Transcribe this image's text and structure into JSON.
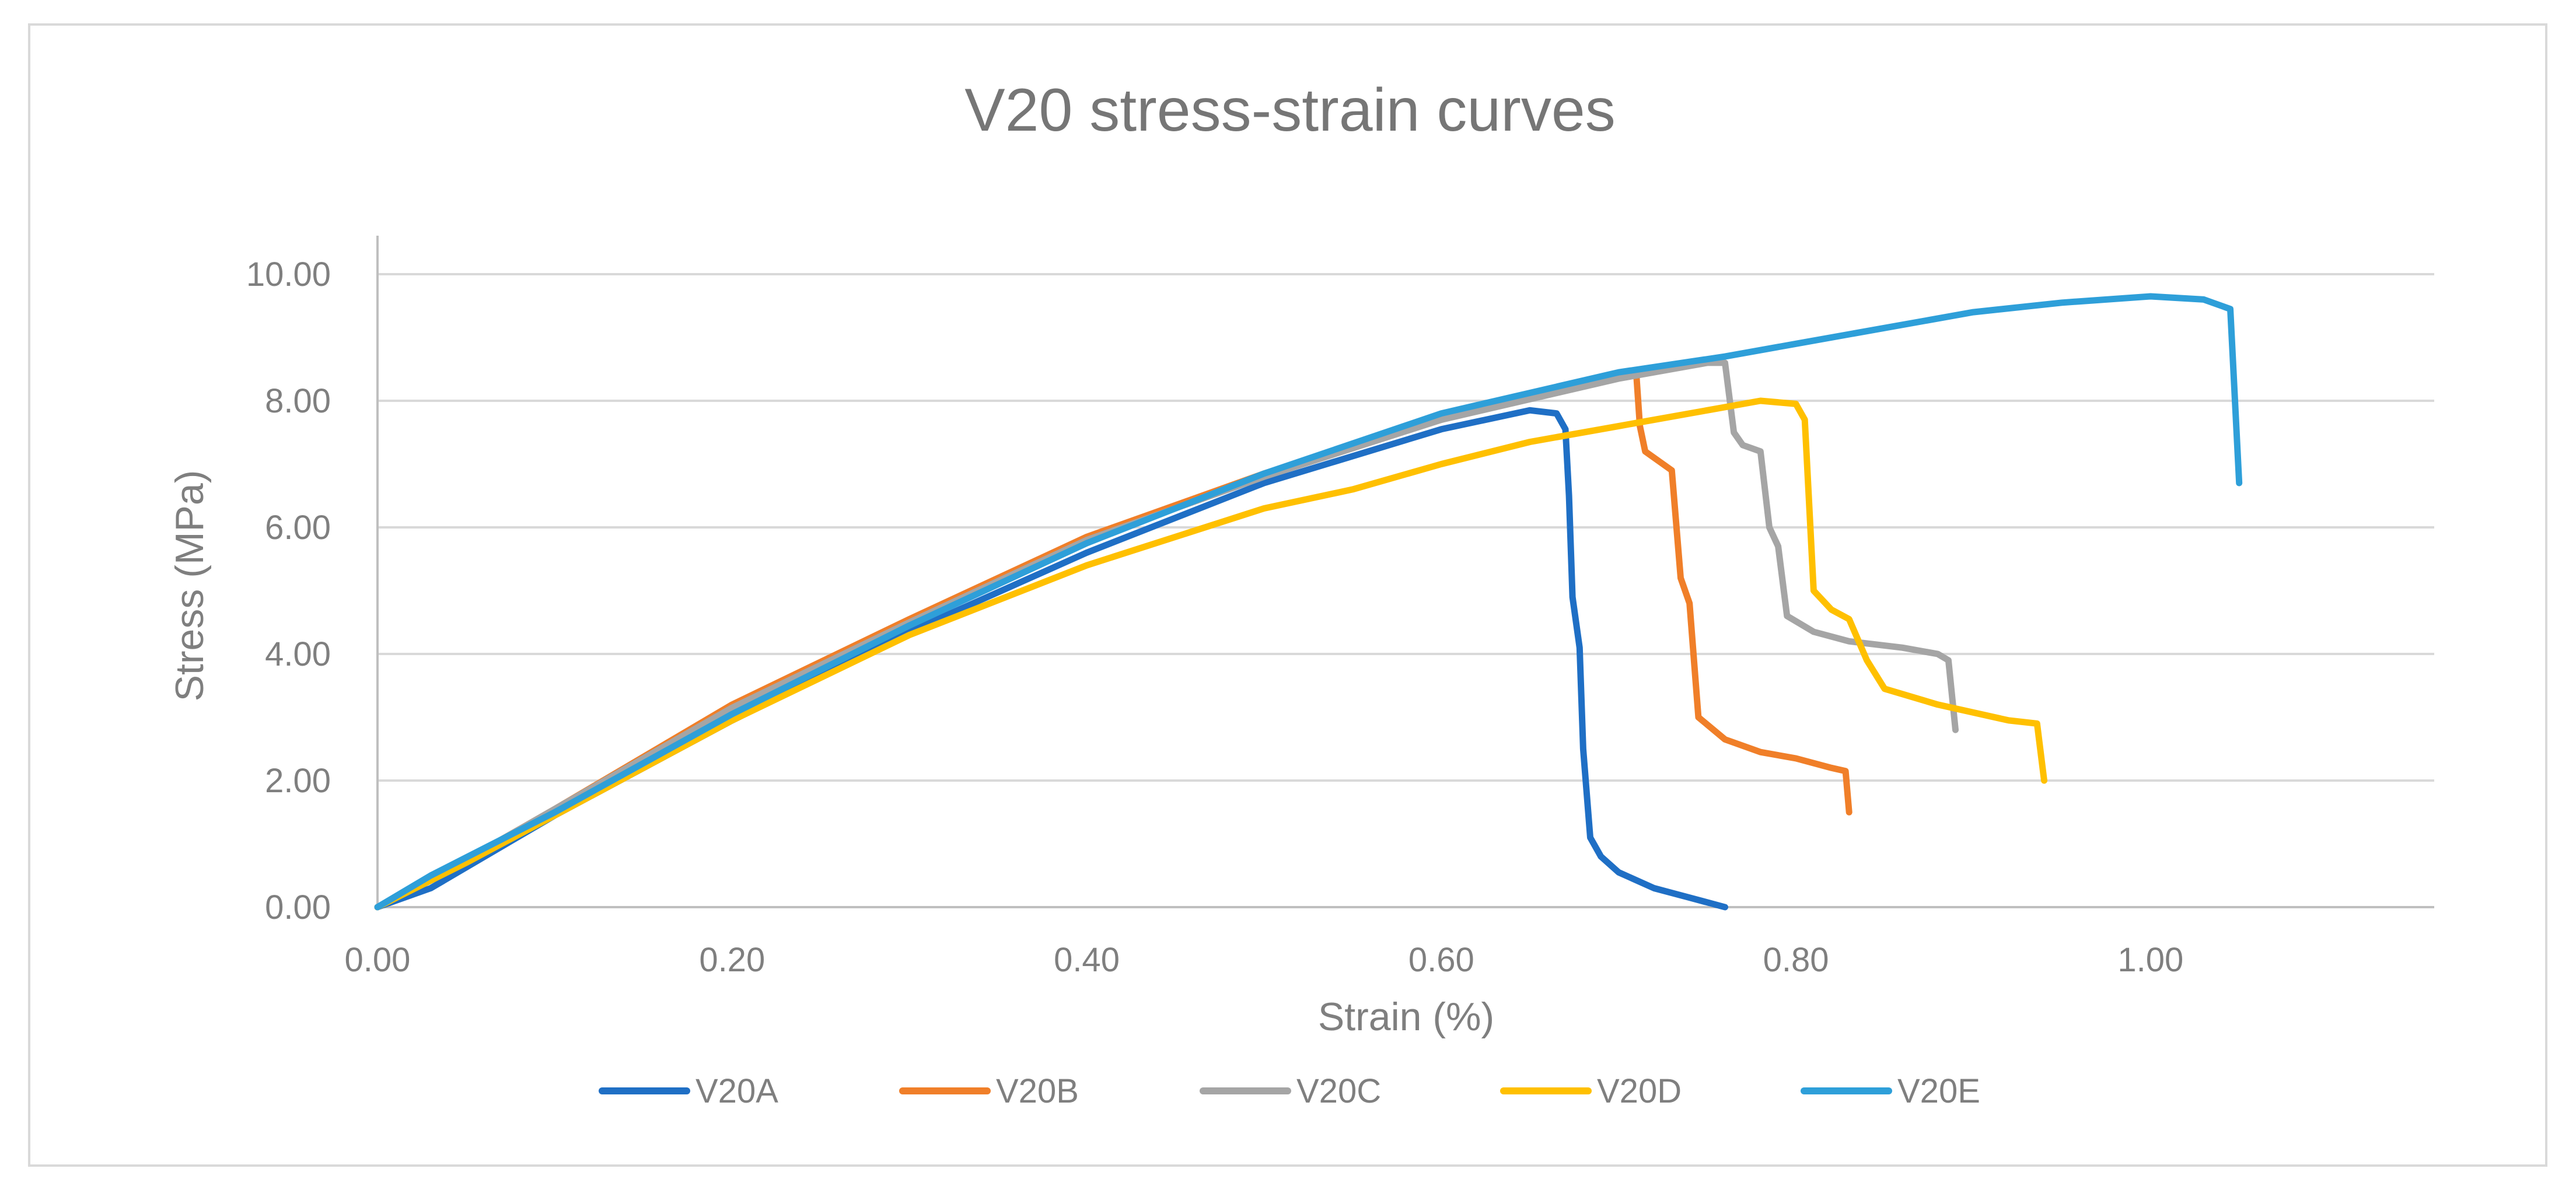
{
  "chart_data": {
    "type": "line",
    "title": "V20 stress-strain curves",
    "xlabel": "Strain (%)",
    "ylabel": "Stress (MPa)",
    "xlim": [
      0,
      1.16
    ],
    "ylim": [
      0,
      10.5
    ],
    "x_ticks": [
      "0.00",
      "0.20",
      "0.40",
      "0.60",
      "0.80",
      "1.00"
    ],
    "y_ticks": [
      "0.00",
      "2.00",
      "4.00",
      "6.00",
      "8.00",
      "10.00"
    ],
    "grid": "horizontal",
    "legend_position": "bottom",
    "series": [
      {
        "name": "V20A",
        "color": "#1f6fc5",
        "points": [
          [
            0,
            0
          ],
          [
            0.03,
            0.3
          ],
          [
            0.1,
            1.45
          ],
          [
            0.2,
            2.95
          ],
          [
            0.3,
            4.35
          ],
          [
            0.4,
            5.6
          ],
          [
            0.5,
            6.7
          ],
          [
            0.6,
            7.55
          ],
          [
            0.65,
            7.85
          ],
          [
            0.665,
            7.8
          ],
          [
            0.67,
            7.55
          ],
          [
            0.672,
            6.5
          ],
          [
            0.674,
            4.9
          ],
          [
            0.678,
            4.1
          ],
          [
            0.68,
            2.5
          ],
          [
            0.684,
            1.1
          ],
          [
            0.69,
            0.8
          ],
          [
            0.7,
            0.55
          ],
          [
            0.72,
            0.3
          ],
          [
            0.74,
            0.15
          ],
          [
            0.76,
            0.0
          ]
        ]
      },
      {
        "name": "V20B",
        "color": "#f07f29",
        "points": [
          [
            0,
            0
          ],
          [
            0.05,
            0.75
          ],
          [
            0.1,
            1.55
          ],
          [
            0.2,
            3.2
          ],
          [
            0.3,
            4.55
          ],
          [
            0.4,
            5.85
          ],
          [
            0.5,
            6.85
          ],
          [
            0.6,
            7.7
          ],
          [
            0.65,
            8.1
          ],
          [
            0.7,
            8.4
          ],
          [
            0.71,
            8.42
          ],
          [
            0.712,
            7.6
          ],
          [
            0.715,
            7.2
          ],
          [
            0.73,
            6.9
          ],
          [
            0.735,
            5.2
          ],
          [
            0.74,
            4.8
          ],
          [
            0.745,
            3.0
          ],
          [
            0.76,
            2.65
          ],
          [
            0.78,
            2.45
          ],
          [
            0.8,
            2.35
          ],
          [
            0.82,
            2.2
          ],
          [
            0.828,
            2.15
          ],
          [
            0.83,
            1.5
          ]
        ]
      },
      {
        "name": "V20C",
        "color": "#a5a5a5",
        "points": [
          [
            0,
            0
          ],
          [
            0.05,
            0.75
          ],
          [
            0.1,
            1.55
          ],
          [
            0.2,
            3.15
          ],
          [
            0.3,
            4.5
          ],
          [
            0.4,
            5.8
          ],
          [
            0.5,
            6.8
          ],
          [
            0.6,
            7.7
          ],
          [
            0.7,
            8.35
          ],
          [
            0.75,
            8.6
          ],
          [
            0.76,
            8.6
          ],
          [
            0.765,
            7.5
          ],
          [
            0.77,
            7.3
          ],
          [
            0.78,
            7.2
          ],
          [
            0.785,
            6.0
          ],
          [
            0.79,
            5.7
          ],
          [
            0.795,
            4.6
          ],
          [
            0.81,
            4.35
          ],
          [
            0.83,
            4.2
          ],
          [
            0.86,
            4.1
          ],
          [
            0.88,
            4.0
          ],
          [
            0.886,
            3.9
          ],
          [
            0.89,
            2.8
          ]
        ]
      },
      {
        "name": "V20D",
        "color": "#ffc000",
        "points": [
          [
            0,
            0
          ],
          [
            0.05,
            0.7
          ],
          [
            0.1,
            1.45
          ],
          [
            0.2,
            2.95
          ],
          [
            0.3,
            4.3
          ],
          [
            0.4,
            5.4
          ],
          [
            0.5,
            6.3
          ],
          [
            0.55,
            6.6
          ],
          [
            0.6,
            7.0
          ],
          [
            0.65,
            7.35
          ],
          [
            0.7,
            7.6
          ],
          [
            0.75,
            7.85
          ],
          [
            0.78,
            8.0
          ],
          [
            0.8,
            7.95
          ],
          [
            0.805,
            7.7
          ],
          [
            0.81,
            5.0
          ],
          [
            0.82,
            4.7
          ],
          [
            0.83,
            4.55
          ],
          [
            0.84,
            3.9
          ],
          [
            0.85,
            3.45
          ],
          [
            0.88,
            3.2
          ],
          [
            0.92,
            2.95
          ],
          [
            0.936,
            2.9
          ],
          [
            0.94,
            2.0
          ]
        ]
      },
      {
        "name": "V20E",
        "color": "#2e9fd9",
        "points": [
          [
            0,
            0
          ],
          [
            0.03,
            0.5
          ],
          [
            0.1,
            1.5
          ],
          [
            0.2,
            3.05
          ],
          [
            0.3,
            4.45
          ],
          [
            0.4,
            5.75
          ],
          [
            0.5,
            6.85
          ],
          [
            0.6,
            7.8
          ],
          [
            0.7,
            8.45
          ],
          [
            0.76,
            8.7
          ],
          [
            0.8,
            8.9
          ],
          [
            0.85,
            9.15
          ],
          [
            0.9,
            9.4
          ],
          [
            0.95,
            9.55
          ],
          [
            1.0,
            9.65
          ],
          [
            1.03,
            9.6
          ],
          [
            1.045,
            9.45
          ],
          [
            1.05,
            6.7
          ]
        ]
      }
    ]
  }
}
